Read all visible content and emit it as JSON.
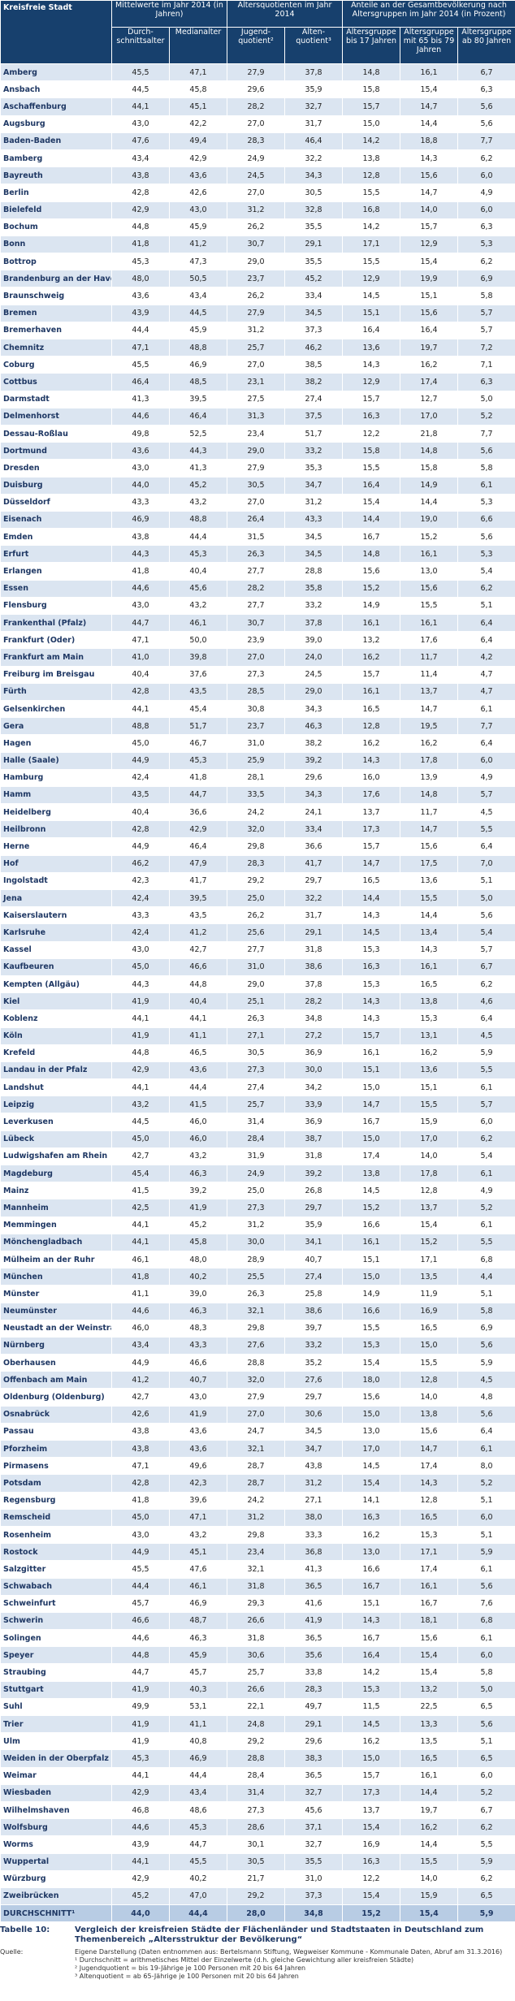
{
  "table": {
    "header": {
      "city": "Kreisfreie Stadt",
      "groups": [
        "Mittelwerte im Jahr 2014 (in Jahren)",
        "Altersquotienten im Jahr 2014",
        "Anteile an der Gesamtbevölkerung nach Altersgruppen im Jahr 2014 (in Prozent)"
      ],
      "columns": [
        "Durch­schnitts­alter",
        "Median­alter",
        "Jugend­quotient²",
        "Alten­quotient³",
        "Alters­gruppe bis 17 Jahren",
        "Alters­gruppe mit 65 bis 79 Jahren",
        "Alters­gruppe ab 80 Jahren"
      ]
    },
    "rows": [
      [
        "Amberg",
        "45,5",
        "47,1",
        "27,9",
        "37,8",
        "14,8",
        "16,1",
        "6,7"
      ],
      [
        "Ansbach",
        "44,5",
        "45,8",
        "29,6",
        "35,9",
        "15,8",
        "15,4",
        "6,3"
      ],
      [
        "Aschaffenburg",
        "44,1",
        "45,1",
        "28,2",
        "32,7",
        "15,7",
        "14,7",
        "5,6"
      ],
      [
        "Augsburg",
        "43,0",
        "42,2",
        "27,0",
        "31,7",
        "15,0",
        "14,4",
        "5,6"
      ],
      [
        "Baden-Baden",
        "47,6",
        "49,4",
        "28,3",
        "46,4",
        "14,2",
        "18,8",
        "7,7"
      ],
      [
        "Bamberg",
        "43,4",
        "42,9",
        "24,9",
        "32,2",
        "13,8",
        "14,3",
        "6,2"
      ],
      [
        "Bayreuth",
        "43,8",
        "43,6",
        "24,5",
        "34,3",
        "12,8",
        "15,6",
        "6,0"
      ],
      [
        "Berlin",
        "42,8",
        "42,6",
        "27,0",
        "30,5",
        "15,5",
        "14,7",
        "4,9"
      ],
      [
        "Bielefeld",
        "42,9",
        "43,0",
        "31,2",
        "32,8",
        "16,8",
        "14,0",
        "6,0"
      ],
      [
        "Bochum",
        "44,8",
        "45,9",
        "26,2",
        "35,5",
        "14,2",
        "15,7",
        "6,3"
      ],
      [
        "Bonn",
        "41,8",
        "41,2",
        "30,7",
        "29,1",
        "17,1",
        "12,9",
        "5,3"
      ],
      [
        "Bottrop",
        "45,3",
        "47,3",
        "29,0",
        "35,5",
        "15,5",
        "15,4",
        "6,2"
      ],
      [
        "Brandenburg an der Havel",
        "48,0",
        "50,5",
        "23,7",
        "45,2",
        "12,9",
        "19,9",
        "6,9"
      ],
      [
        "Braunschweig",
        "43,6",
        "43,4",
        "26,2",
        "33,4",
        "14,5",
        "15,1",
        "5,8"
      ],
      [
        "Bremen",
        "43,9",
        "44,5",
        "27,9",
        "34,5",
        "15,1",
        "15,6",
        "5,7"
      ],
      [
        "Bremerhaven",
        "44,4",
        "45,9",
        "31,2",
        "37,3",
        "16,4",
        "16,4",
        "5,7"
      ],
      [
        "Chemnitz",
        "47,1",
        "48,8",
        "25,7",
        "46,2",
        "13,6",
        "19,7",
        "7,2"
      ],
      [
        "Coburg",
        "45,5",
        "46,9",
        "27,0",
        "38,5",
        "14,3",
        "16,2",
        "7,1"
      ],
      [
        "Cottbus",
        "46,4",
        "48,5",
        "23,1",
        "38,2",
        "12,9",
        "17,4",
        "6,3"
      ],
      [
        "Darmstadt",
        "41,3",
        "39,5",
        "27,5",
        "27,4",
        "15,7",
        "12,7",
        "5,0"
      ],
      [
        "Delmenhorst",
        "44,6",
        "46,4",
        "31,3",
        "37,5",
        "16,3",
        "17,0",
        "5,2"
      ],
      [
        "Dessau-Roßlau",
        "49,8",
        "52,5",
        "23,4",
        "51,7",
        "12,2",
        "21,8",
        "7,7"
      ],
      [
        "Dortmund",
        "43,6",
        "44,3",
        "29,0",
        "33,2",
        "15,8",
        "14,8",
        "5,6"
      ],
      [
        "Dresden",
        "43,0",
        "41,3",
        "27,9",
        "35,3",
        "15,5",
        "15,8",
        "5,8"
      ],
      [
        "Duisburg",
        "44,0",
        "45,2",
        "30,5",
        "34,7",
        "16,4",
        "14,9",
        "6,1"
      ],
      [
        "Düsseldorf",
        "43,3",
        "43,2",
        "27,0",
        "31,2",
        "15,4",
        "14,4",
        "5,3"
      ],
      [
        "Eisenach",
        "46,9",
        "48,8",
        "26,4",
        "43,3",
        "14,4",
        "19,0",
        "6,6"
      ],
      [
        "Emden",
        "43,8",
        "44,4",
        "31,5",
        "34,5",
        "16,7",
        "15,2",
        "5,6"
      ],
      [
        "Erfurt",
        "44,3",
        "45,3",
        "26,3",
        "34,5",
        "14,8",
        "16,1",
        "5,3"
      ],
      [
        "Erlangen",
        "41,8",
        "40,4",
        "27,7",
        "28,8",
        "15,6",
        "13,0",
        "5,4"
      ],
      [
        "Essen",
        "44,6",
        "45,6",
        "28,2",
        "35,8",
        "15,2",
        "15,6",
        "6,2"
      ],
      [
        "Flensburg",
        "43,0",
        "43,2",
        "27,7",
        "33,2",
        "14,9",
        "15,5",
        "5,1"
      ],
      [
        "Frankenthal (Pfalz)",
        "44,7",
        "46,1",
        "30,7",
        "37,8",
        "16,1",
        "16,1",
        "6,4"
      ],
      [
        "Frankfurt (Oder)",
        "47,1",
        "50,0",
        "23,9",
        "39,0",
        "13,2",
        "17,6",
        "6,4"
      ],
      [
        "Frankfurt am Main",
        "41,0",
        "39,8",
        "27,0",
        "24,0",
        "16,2",
        "11,7",
        "4,2"
      ],
      [
        "Freiburg im Breisgau",
        "40,4",
        "37,6",
        "27,3",
        "24,5",
        "15,7",
        "11,4",
        "4,7"
      ],
      [
        "Fürth",
        "42,8",
        "43,5",
        "28,5",
        "29,0",
        "16,1",
        "13,7",
        "4,7"
      ],
      [
        "Gelsenkirchen",
        "44,1",
        "45,4",
        "30,8",
        "34,3",
        "16,5",
        "14,7",
        "6,1"
      ],
      [
        "Gera",
        "48,8",
        "51,7",
        "23,7",
        "46,3",
        "12,8",
        "19,5",
        "7,7"
      ],
      [
        "Hagen",
        "45,0",
        "46,7",
        "31,0",
        "38,2",
        "16,2",
        "16,2",
        "6,4"
      ],
      [
        "Halle (Saale)",
        "44,9",
        "45,3",
        "25,9",
        "39,2",
        "14,3",
        "17,8",
        "6,0"
      ],
      [
        "Hamburg",
        "42,4",
        "41,8",
        "28,1",
        "29,6",
        "16,0",
        "13,9",
        "4,9"
      ],
      [
        "Hamm",
        "43,5",
        "44,7",
        "33,5",
        "34,3",
        "17,6",
        "14,8",
        "5,7"
      ],
      [
        "Heidelberg",
        "40,4",
        "36,6",
        "24,2",
        "24,1",
        "13,7",
        "11,7",
        "4,5"
      ],
      [
        "Heilbronn",
        "42,8",
        "42,9",
        "32,0",
        "33,4",
        "17,3",
        "14,7",
        "5,5"
      ],
      [
        "Herne",
        "44,9",
        "46,4",
        "29,8",
        "36,6",
        "15,7",
        "15,6",
        "6,4"
      ],
      [
        "Hof",
        "46,2",
        "47,9",
        "28,3",
        "41,7",
        "14,7",
        "17,5",
        "7,0"
      ],
      [
        "Ingolstadt",
        "42,3",
        "41,7",
        "29,2",
        "29,7",
        "16,5",
        "13,6",
        "5,1"
      ],
      [
        "Jena",
        "42,4",
        "39,5",
        "25,0",
        "32,2",
        "14,4",
        "15,5",
        "5,0"
      ],
      [
        "Kaiserslautern",
        "43,3",
        "43,5",
        "26,2",
        "31,7",
        "14,3",
        "14,4",
        "5,6"
      ],
      [
        "Karlsruhe",
        "42,4",
        "41,2",
        "25,6",
        "29,1",
        "14,5",
        "13,4",
        "5,4"
      ],
      [
        "Kassel",
        "43,0",
        "42,7",
        "27,7",
        "31,8",
        "15,3",
        "14,3",
        "5,7"
      ],
      [
        "Kaufbeuren",
        "45,0",
        "46,6",
        "31,0",
        "38,6",
        "16,3",
        "16,1",
        "6,7"
      ],
      [
        "Kempten (Allgäu)",
        "44,3",
        "44,8",
        "29,0",
        "37,8",
        "15,3",
        "16,5",
        "6,2"
      ],
      [
        "Kiel",
        "41,9",
        "40,4",
        "25,1",
        "28,2",
        "14,3",
        "13,8",
        "4,6"
      ],
      [
        "Koblenz",
        "44,1",
        "44,1",
        "26,3",
        "34,8",
        "14,3",
        "15,3",
        "6,4"
      ],
      [
        "Köln",
        "41,9",
        "41,1",
        "27,1",
        "27,2",
        "15,7",
        "13,1",
        "4,5"
      ],
      [
        "Krefeld",
        "44,8",
        "46,5",
        "30,5",
        "36,9",
        "16,1",
        "16,2",
        "5,9"
      ],
      [
        "Landau in der Pfalz",
        "42,9",
        "43,6",
        "27,3",
        "30,0",
        "15,1",
        "13,6",
        "5,5"
      ],
      [
        "Landshut",
        "44,1",
        "44,4",
        "27,4",
        "34,2",
        "15,0",
        "15,1",
        "6,1"
      ],
      [
        "Leipzig",
        "43,2",
        "41,5",
        "25,7",
        "33,9",
        "14,7",
        "15,5",
        "5,7"
      ],
      [
        "Leverkusen",
        "44,5",
        "46,0",
        "31,4",
        "36,9",
        "16,7",
        "15,9",
        "6,0"
      ],
      [
        "Lübeck",
        "45,0",
        "46,0",
        "28,4",
        "38,7",
        "15,0",
        "17,0",
        "6,2"
      ],
      [
        "Ludwigshafen am Rhein",
        "42,7",
        "43,2",
        "31,9",
        "31,8",
        "17,4",
        "14,0",
        "5,4"
      ],
      [
        "Magdeburg",
        "45,4",
        "46,3",
        "24,9",
        "39,2",
        "13,8",
        "17,8",
        "6,1"
      ],
      [
        "Mainz",
        "41,5",
        "39,2",
        "25,0",
        "26,8",
        "14,5",
        "12,8",
        "4,9"
      ],
      [
        "Mannheim",
        "42,5",
        "41,9",
        "27,3",
        "29,7",
        "15,2",
        "13,7",
        "5,2"
      ],
      [
        "Memmingen",
        "44,1",
        "45,2",
        "31,2",
        "35,9",
        "16,6",
        "15,4",
        "6,1"
      ],
      [
        "Mönchengladbach",
        "44,1",
        "45,8",
        "30,0",
        "34,1",
        "16,1",
        "15,2",
        "5,5"
      ],
      [
        "Mülheim an der Ruhr",
        "46,1",
        "48,0",
        "28,9",
        "40,7",
        "15,1",
        "17,1",
        "6,8"
      ],
      [
        "München",
        "41,8",
        "40,2",
        "25,5",
        "27,4",
        "15,0",
        "13,5",
        "4,4"
      ],
      [
        "Münster",
        "41,1",
        "39,0",
        "26,3",
        "25,8",
        "14,9",
        "11,9",
        "5,1"
      ],
      [
        "Neumünster",
        "44,6",
        "46,3",
        "32,1",
        "38,6",
        "16,6",
        "16,9",
        "5,8"
      ],
      [
        "Neustadt an der Weinstraße",
        "46,0",
        "48,3",
        "29,8",
        "39,7",
        "15,5",
        "16,5",
        "6,9"
      ],
      [
        "Nürnberg",
        "43,4",
        "43,3",
        "27,6",
        "33,2",
        "15,3",
        "15,0",
        "5,6"
      ],
      [
        "Oberhausen",
        "44,9",
        "46,6",
        "28,8",
        "35,2",
        "15,4",
        "15,5",
        "5,9"
      ],
      [
        "Offenbach am Main",
        "41,2",
        "40,7",
        "32,0",
        "27,6",
        "18,0",
        "12,8",
        "4,5"
      ],
      [
        "Oldenburg (Oldenburg)",
        "42,7",
        "43,0",
        "27,9",
        "29,7",
        "15,6",
        "14,0",
        "4,8"
      ],
      [
        "Osnabrück",
        "42,6",
        "41,9",
        "27,0",
        "30,6",
        "15,0",
        "13,8",
        "5,6"
      ],
      [
        "Passau",
        "43,8",
        "43,6",
        "24,7",
        "34,5",
        "13,0",
        "15,6",
        "6,4"
      ],
      [
        "Pforzheim",
        "43,8",
        "43,6",
        "32,1",
        "34,7",
        "17,0",
        "14,7",
        "6,1"
      ],
      [
        "Pirmasens",
        "47,1",
        "49,6",
        "28,7",
        "43,8",
        "14,5",
        "17,4",
        "8,0"
      ],
      [
        "Potsdam",
        "42,8",
        "42,3",
        "28,7",
        "31,2",
        "15,4",
        "14,3",
        "5,2"
      ],
      [
        "Regensburg",
        "41,8",
        "39,6",
        "24,2",
        "27,1",
        "14,1",
        "12,8",
        "5,1"
      ],
      [
        "Remscheid",
        "45,0",
        "47,1",
        "31,2",
        "38,0",
        "16,3",
        "16,5",
        "6,0"
      ],
      [
        "Rosenheim",
        "43,0",
        "43,2",
        "29,8",
        "33,3",
        "16,2",
        "15,3",
        "5,1"
      ],
      [
        "Rostock",
        "44,9",
        "45,1",
        "23,4",
        "36,8",
        "13,0",
        "17,1",
        "5,9"
      ],
      [
        "Salzgitter",
        "45,5",
        "47,6",
        "32,1",
        "41,3",
        "16,6",
        "17,4",
        "6,1"
      ],
      [
        "Schwabach",
        "44,4",
        "46,1",
        "31,8",
        "36,5",
        "16,7",
        "16,1",
        "5,6"
      ],
      [
        "Schweinfurt",
        "45,7",
        "46,9",
        "29,3",
        "41,6",
        "15,1",
        "16,7",
        "7,6"
      ],
      [
        "Schwerin",
        "46,6",
        "48,7",
        "26,6",
        "41,9",
        "14,3",
        "18,1",
        "6,8"
      ],
      [
        "Solingen",
        "44,6",
        "46,3",
        "31,8",
        "36,5",
        "16,7",
        "15,6",
        "6,1"
      ],
      [
        "Speyer",
        "44,8",
        "45,9",
        "30,6",
        "35,6",
        "16,4",
        "15,4",
        "6,0"
      ],
      [
        "Straubing",
        "44,7",
        "45,7",
        "25,7",
        "33,8",
        "14,2",
        "15,4",
        "5,8"
      ],
      [
        "Stuttgart",
        "41,9",
        "40,3",
        "26,6",
        "28,3",
        "15,3",
        "13,2",
        "5,0"
      ],
      [
        "Suhl",
        "49,9",
        "53,1",
        "22,1",
        "49,7",
        "11,5",
        "22,5",
        "6,5"
      ],
      [
        "Trier",
        "41,9",
        "41,1",
        "24,8",
        "29,1",
        "14,5",
        "13,3",
        "5,6"
      ],
      [
        "Ulm",
        "41,9",
        "40,8",
        "29,2",
        "29,6",
        "16,2",
        "13,5",
        "5,1"
      ],
      [
        "Weiden in der Oberpfalz",
        "45,3",
        "46,9",
        "28,8",
        "38,3",
        "15,0",
        "16,5",
        "6,5"
      ],
      [
        "Weimar",
        "44,1",
        "44,4",
        "28,4",
        "36,5",
        "15,7",
        "16,1",
        "6,0"
      ],
      [
        "Wiesbaden",
        "42,9",
        "43,4",
        "31,4",
        "32,7",
        "17,3",
        "14,4",
        "5,2"
      ],
      [
        "Wilhelmshaven",
        "46,8",
        "48,6",
        "27,3",
        "45,6",
        "13,7",
        "19,7",
        "6,7"
      ],
      [
        "Wolfsburg",
        "44,6",
        "45,3",
        "28,6",
        "37,1",
        "15,4",
        "16,2",
        "6,2"
      ],
      [
        "Worms",
        "43,9",
        "44,7",
        "30,1",
        "32,7",
        "16,9",
        "14,4",
        "5,5"
      ],
      [
        "Wuppertal",
        "44,1",
        "45,5",
        "30,5",
        "35,5",
        "16,3",
        "15,5",
        "5,9"
      ],
      [
        "Würzburg",
        "42,9",
        "40,2",
        "21,7",
        "31,0",
        "12,2",
        "14,0",
        "6,2"
      ],
      [
        "Zweibrücken",
        "45,2",
        "47,0",
        "29,2",
        "37,3",
        "15,4",
        "15,9",
        "6,5"
      ],
      [
        "DURCHSCHNITT¹",
        "44,0",
        "44,4",
        "28,0",
        "34,8",
        "15,2",
        "15,4",
        "5,9"
      ]
    ]
  },
  "caption": {
    "label": "Tabelle 10:",
    "text": "Vergleich der kreisfreien Städte der Flächenländer und Stadtstaaten in Deutschland zum Themenbereich „Altersstruktur der Bevölkerung“"
  },
  "source": {
    "label": "Quelle:",
    "lines": [
      "Eigene Darstellung (Daten entnommen aus: Bertelsmann Stiftung, Wegweiser Kommune - Kommunale Daten, Abruf am 31.3.2016)",
      "¹ Durchschnitt = arithmetisches Mittel der Einzelwerte (d.h. gleiche Gewichtung aller kreisfreien Städte)",
      "² Jugendquotient = bis 19-Jährige je 100 Personen mit 20 bis 64 Jahren",
      "³ Altenquotient = ab 65-Jährige je 100 Personen mit 20 bis 64 Jahren"
    ]
  }
}
